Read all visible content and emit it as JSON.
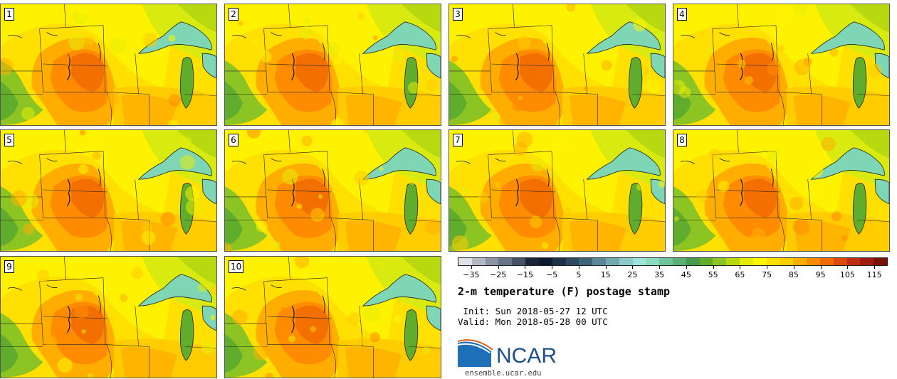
{
  "panels": [
    {
      "label": "1"
    },
    {
      "label": "2"
    },
    {
      "label": "3"
    },
    {
      "label": "4"
    },
    {
      "label": "5"
    },
    {
      "label": "6"
    },
    {
      "label": "7"
    },
    {
      "label": "8"
    },
    {
      "label": "9"
    },
    {
      "label": "10"
    }
  ],
  "colorbar": {
    "colors": [
      "#e0e0e8",
      "#b4b8c4",
      "#8c94a4",
      "#6a7688",
      "#445266",
      "#1c2438",
      "#0e1a30",
      "#1e3048",
      "#2e4a60",
      "#3e6478",
      "#5a8898",
      "#74a8b0",
      "#8ccaca",
      "#9ce4dc",
      "#88dcc0",
      "#70c49a",
      "#58ae74",
      "#449a48",
      "#60ac2c",
      "#8cc424",
      "#b8d810",
      "#e4ec08",
      "#fff600",
      "#ffe000",
      "#ffcc00",
      "#ffae00",
      "#ff8c00",
      "#f06a00",
      "#dc4a08",
      "#c02c10",
      "#a01a10",
      "#7a1008"
    ],
    "tick_labels": [
      "−35",
      "−25",
      "−15",
      "−5",
      "5",
      "15",
      "25",
      "35",
      "45",
      "55",
      "65",
      "75",
      "85",
      "95",
      "105",
      "115"
    ],
    "vmin": -40,
    "vmax": 120,
    "tick_values": [
      -35,
      -25,
      -15,
      -5,
      5,
      15,
      25,
      35,
      45,
      55,
      65,
      75,
      85,
      95,
      105,
      115
    ]
  },
  "title": "2-m temperature (F) postage stamp",
  "init_line": " Init: Sun 2018-05-27 12 UTC",
  "valid_line": "Valid: Mon 2018-05-28 00 UTC",
  "logo_text": "NCAR",
  "site": "ensemble.ucar.edu",
  "colors": {
    "lake": "#7ed6b4",
    "border": "#222222",
    "brand": "#1d4f8c"
  }
}
